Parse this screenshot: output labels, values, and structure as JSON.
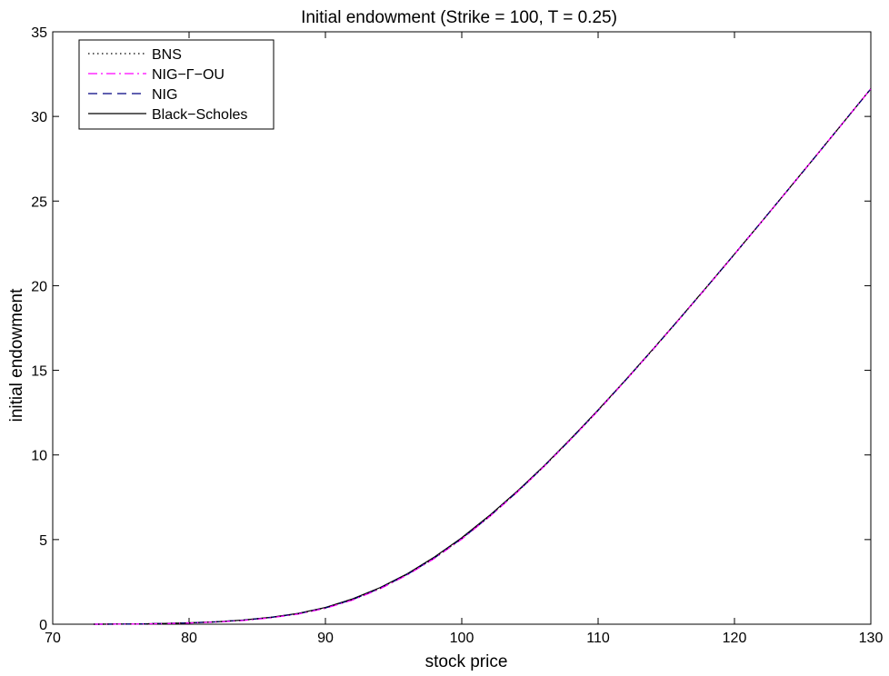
{
  "chart_data": {
    "type": "line",
    "title": "Initial endowment (Strike = 100, T = 0.25)",
    "xlabel": "stock price",
    "ylabel": "initial endowment",
    "xlim": [
      70,
      130
    ],
    "ylim": [
      0,
      35
    ],
    "xticks": [
      70,
      80,
      90,
      100,
      110,
      120,
      130
    ],
    "yticks": [
      0,
      5,
      10,
      15,
      20,
      25,
      30,
      35
    ],
    "grid": false,
    "legend_position": "top-left",
    "x": [
      73,
      76,
      78,
      80,
      82,
      84,
      86,
      88,
      90,
      92,
      94,
      96,
      98,
      100,
      102,
      104,
      106,
      108,
      110,
      112,
      114,
      116,
      118,
      120,
      122,
      124,
      126,
      128,
      130
    ],
    "series": [
      {
        "name": "BNS",
        "style": "dotted",
        "color": "#000000",
        "values": [
          0.0,
          0.01,
          0.04,
          0.08,
          0.14,
          0.24,
          0.4,
          0.62,
          0.97,
          1.47,
          2.13,
          2.95,
          3.93,
          5.07,
          6.36,
          7.78,
          9.31,
          10.94,
          12.64,
          14.41,
          16.22,
          18.07,
          19.95,
          21.86,
          23.79,
          25.74,
          27.69,
          29.66,
          31.63
        ]
      },
      {
        "name": "NIG−Γ−OU",
        "style": "dashdot",
        "color": "#ff00ff",
        "values": [
          0.0,
          0.01,
          0.03,
          0.07,
          0.13,
          0.22,
          0.38,
          0.6,
          0.94,
          1.43,
          2.09,
          2.91,
          3.89,
          5.03,
          6.33,
          7.75,
          9.29,
          10.92,
          12.62,
          14.39,
          16.21,
          18.06,
          19.94,
          21.85,
          23.78,
          25.73,
          27.69,
          29.66,
          31.63
        ]
      },
      {
        "name": "NIG",
        "style": "dashed",
        "color": "#000080",
        "values": [
          0.0,
          0.01,
          0.04,
          0.08,
          0.14,
          0.24,
          0.4,
          0.62,
          0.96,
          1.46,
          2.12,
          2.94,
          3.92,
          5.06,
          6.35,
          7.77,
          9.3,
          10.93,
          12.63,
          14.4,
          16.21,
          18.07,
          19.95,
          21.86,
          23.79,
          25.73,
          27.69,
          29.66,
          31.63
        ]
      },
      {
        "name": "Black−Scholes",
        "style": "solid",
        "color": "#000000",
        "values": [
          0.0,
          0.01,
          0.04,
          0.08,
          0.14,
          0.25,
          0.41,
          0.64,
          0.99,
          1.5,
          2.16,
          2.98,
          3.97,
          5.11,
          6.4,
          7.81,
          9.33,
          10.96,
          12.66,
          14.42,
          16.23,
          18.08,
          19.96,
          21.87,
          23.79,
          25.74,
          27.69,
          29.66,
          31.63
        ]
      }
    ]
  }
}
